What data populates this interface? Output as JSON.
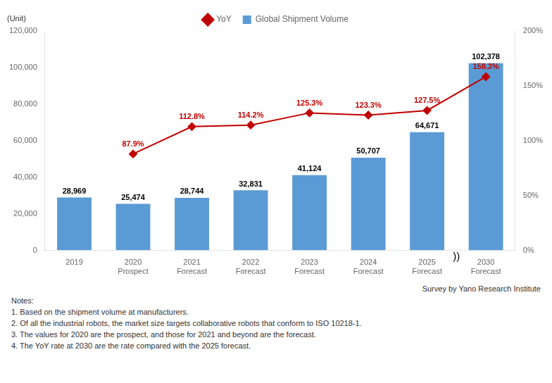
{
  "chart_data": {
    "type": "bar",
    "categories": [
      "2019",
      "2020\nProspect",
      "2021\nForecast",
      "2022\nForecast",
      "2023\nForecast",
      "2024\nForecast",
      "2025\nForecast",
      "2030\nForecast"
    ],
    "series": [
      {
        "name": "Global Shipment Volume",
        "type": "bar",
        "color": "#5B9BD5",
        "values": [
          28969,
          25474,
          28744,
          32831,
          41124,
          50707,
          64671,
          102378
        ],
        "value_labels": [
          "28,969",
          "25,474",
          "28,744",
          "32,831",
          "41,124",
          "50,707",
          "64,671",
          "102,378"
        ]
      },
      {
        "name": "YoY",
        "type": "line",
        "axis": "y2",
        "color": "#C00000",
        "marker": "diamond",
        "line_style": "solid",
        "values": [
          null,
          87.9,
          112.8,
          114.2,
          125.3,
          123.3,
          127.5,
          158.3
        ],
        "value_labels": [
          null,
          "87.9%",
          "112.8%",
          "114.2%",
          "125.3%",
          "123.3%",
          "127.5%",
          "158.3%"
        ]
      }
    ],
    "ylabel": "(Unit)",
    "ylim": [
      0,
      120000
    ],
    "yticks": [
      0,
      {
        "value": 20000,
        "label": "20,000"
      },
      {
        "value": 40000,
        "label": "40,000"
      },
      {
        "value": 60000,
        "label": "60,000"
      },
      {
        "value": 80000,
        "label": "80,000"
      },
      {
        "value": 100000,
        "label": "100,000"
      },
      {
        "value": 120000,
        "label": "120,000"
      }
    ],
    "y2lim": [
      0,
      200
    ],
    "y2ticks": [
      {
        "value": 0,
        "label": "0%"
      },
      {
        "value": 50,
        "label": "50%"
      },
      {
        "value": 100,
        "label": "100%"
      },
      {
        "value": 150,
        "label": "150%"
      },
      {
        "value": 200,
        "label": "200%"
      }
    ],
    "annotations": [
      "))"
    ],
    "notes": "Notes:\n1. Based on the shipment volume at manufacturers.\n2. Of all the industrial robots, the market size targets collaborative robots that conform to ISO 10218-1.\n3. The values for 2020 are the prospect, and those for 2021 and beyond are the forecast.\n4. The YoY rate at 2030 are the rate compared with the 2025 forecast.",
    "source": "Survey by Yano Research Institute",
    "grid": false,
    "legend": "top",
    "data_labels": true
  }
}
